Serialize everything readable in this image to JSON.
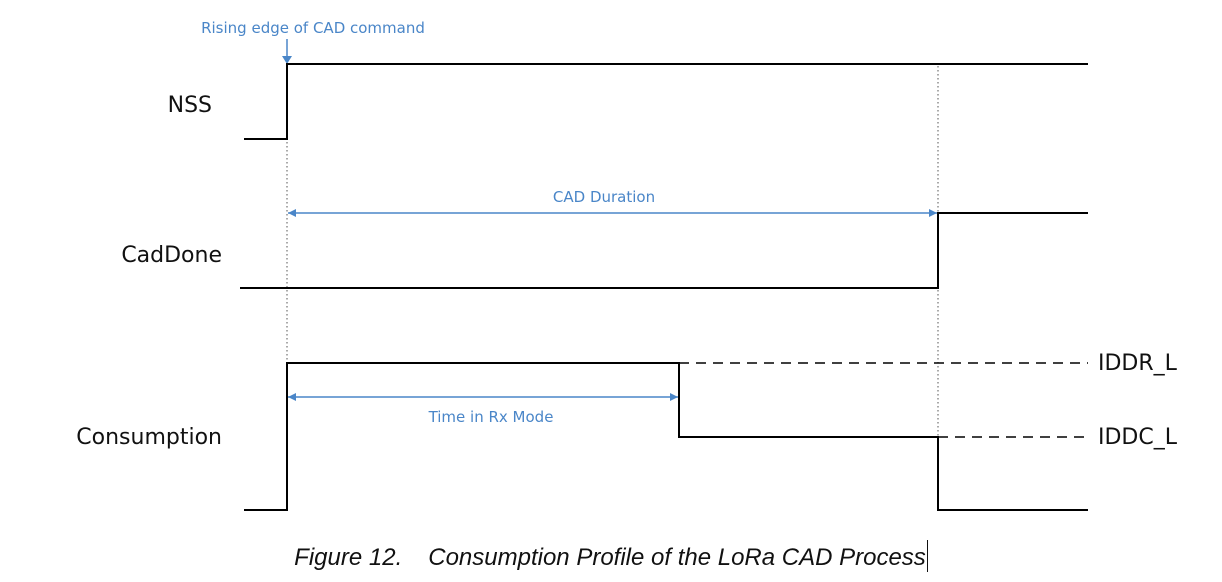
{
  "colors": {
    "signal": "#000000",
    "annotation": "#4a86c8",
    "marker": "#555555"
  },
  "signals": {
    "nss": {
      "label": "NSS"
    },
    "caddone": {
      "label": "CadDone"
    },
    "consumption": {
      "label": "Consumption"
    }
  },
  "levels": {
    "iddr": "IDDR_L",
    "iddc": "IDDC_L"
  },
  "annotations": {
    "rising_edge": "Rising edge of CAD command",
    "cad_duration": "CAD Duration",
    "time_in_rx": "Time in Rx Mode"
  },
  "caption": {
    "number": "Figure 12.",
    "title": "Consumption Profile of the LoRa CAD Process"
  }
}
